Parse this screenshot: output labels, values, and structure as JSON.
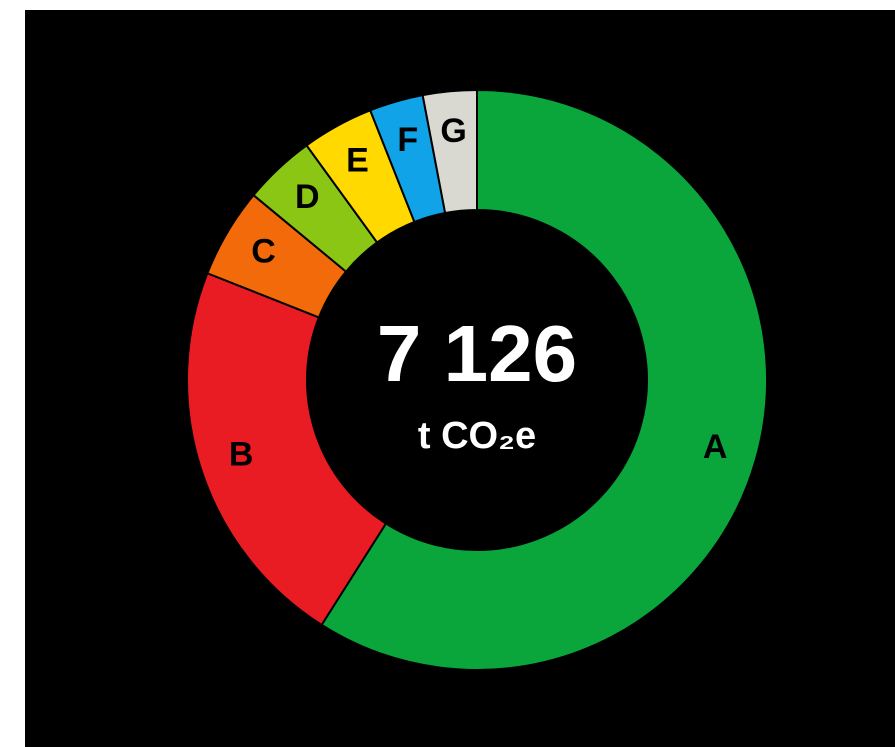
{
  "chart_data": {
    "type": "donut",
    "categories": [
      "A",
      "B",
      "C",
      "D",
      "E",
      "F",
      "G"
    ],
    "values": [
      59,
      22,
      5,
      4,
      4,
      3,
      3
    ],
    "colors": [
      "#0aa63c",
      "#e91c24",
      "#f26a0a",
      "#8cc614",
      "#ffd900",
      "#10a3e8",
      "#d9d9d2"
    ],
    "center_value": "7 126",
    "center_unit": "t CO₂e"
  }
}
